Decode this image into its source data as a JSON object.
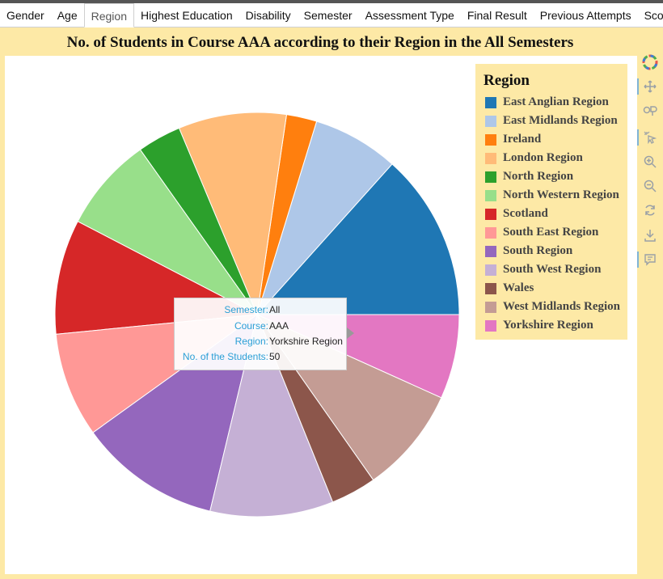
{
  "tabs": [
    {
      "label": "Gender"
    },
    {
      "label": "Age"
    },
    {
      "label": "Region"
    },
    {
      "label": "Highest Education"
    },
    {
      "label": "Disability"
    },
    {
      "label": "Semester"
    },
    {
      "label": "Assessment Type"
    },
    {
      "label": "Final Result"
    },
    {
      "label": "Previous Attempts"
    },
    {
      "label": "Scores"
    }
  ],
  "active_tab": "Region",
  "colors": {
    "panel_bg": "#fde9a6",
    "legend_bg": "#fde9a6",
    "tooltip_key": "#2a9fd6"
  },
  "chart_data": {
    "type": "pie",
    "title": "No. of Students in Course AAA according to their Region in the All Semesters",
    "legend_title": "Region",
    "legend_position": "top-right",
    "start_angle_deg": 0,
    "direction": "counterclockwise",
    "slices": [
      {
        "label": "East Anglian Region",
        "value": 99,
        "color": "#1f77b4"
      },
      {
        "label": "East Midlands Region",
        "value": 51,
        "color": "#aec7e8"
      },
      {
        "label": "Ireland",
        "value": 18,
        "color": "#ff7f0e"
      },
      {
        "label": "London Region",
        "value": 64,
        "color": "#ffbb78"
      },
      {
        "label": "North Region",
        "value": 26,
        "color": "#2ca02c"
      },
      {
        "label": "North Western Region",
        "value": 56,
        "color": "#98df8a"
      },
      {
        "label": "Scotland",
        "value": 68,
        "color": "#d62728"
      },
      {
        "label": "South East Region",
        "value": 62,
        "color": "#ff9896"
      },
      {
        "label": "South Region",
        "value": 84,
        "color": "#9467bd"
      },
      {
        "label": "South West Region",
        "value": 73,
        "color": "#c5b0d5"
      },
      {
        "label": "Wales",
        "value": 27,
        "color": "#8c564b"
      },
      {
        "label": "West Midlands Region",
        "value": 63,
        "color": "#c49c94"
      },
      {
        "label": "Yorkshire Region",
        "value": 50,
        "color": "#e377c2"
      }
    ]
  },
  "tooltip": {
    "semester_key": "Semester:",
    "semester_val": "All",
    "course_key": "Course:",
    "course_val": "AAA",
    "region_key": "Region:",
    "region_val": "Yorkshire Region",
    "count_key": "No. of the Students:",
    "count_val": "50"
  },
  "toolbar": [
    {
      "name": "bokeh-logo-icon"
    },
    {
      "name": "pan-icon",
      "selected": true
    },
    {
      "name": "box-zoom-icon"
    },
    {
      "name": "tap-select-icon",
      "selected": true
    },
    {
      "name": "zoom-in-icon"
    },
    {
      "name": "zoom-out-icon"
    },
    {
      "name": "reset-icon"
    },
    {
      "name": "save-icon"
    },
    {
      "name": "hover-icon",
      "selected": true
    }
  ]
}
